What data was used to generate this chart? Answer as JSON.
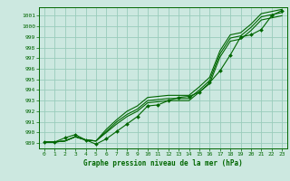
{
  "title": "Graphe pression niveau de la mer (hPa)",
  "bg_color": "#cce8e0",
  "grid_color": "#99ccbb",
  "line_color": "#006600",
  "ylim": [
    988.5,
    1001.8
  ],
  "yticks": [
    989,
    990,
    991,
    992,
    993,
    994,
    995,
    996,
    997,
    998,
    999,
    1000,
    1001
  ],
  "xlim": [
    -0.5,
    23.5
  ],
  "xticks": [
    0,
    1,
    2,
    3,
    4,
    5,
    6,
    7,
    8,
    9,
    10,
    11,
    12,
    13,
    14,
    15,
    16,
    17,
    18,
    19,
    20,
    21,
    22,
    23
  ],
  "plain_lines": [
    [
      989.1,
      989.1,
      989.2,
      989.6,
      989.3,
      989.2,
      990.3,
      991.2,
      992.0,
      992.5,
      993.3,
      993.4,
      993.5,
      993.5,
      993.5,
      994.3,
      995.2,
      997.7,
      999.2,
      999.4,
      1000.2,
      1001.2,
      1001.4,
      1001.6
    ],
    [
      989.1,
      989.1,
      989.2,
      989.6,
      989.3,
      989.2,
      990.1,
      991.0,
      991.7,
      992.2,
      993.0,
      993.1,
      993.2,
      993.2,
      993.2,
      994.0,
      994.9,
      997.4,
      998.9,
      999.1,
      999.9,
      1000.9,
      1001.1,
      1001.3
    ],
    [
      989.1,
      989.1,
      989.2,
      989.6,
      989.3,
      989.2,
      990.0,
      990.8,
      991.5,
      992.0,
      992.8,
      992.9,
      993.0,
      993.0,
      993.0,
      993.8,
      994.6,
      997.1,
      998.6,
      998.8,
      999.6,
      1000.6,
      1000.8,
      1001.0
    ]
  ],
  "marker_line": [
    989.1,
    989.1,
    989.5,
    989.8,
    989.3,
    988.9,
    989.4,
    990.1,
    990.8,
    991.5,
    992.5,
    992.6,
    993.0,
    993.3,
    993.4,
    993.8,
    994.7,
    995.8,
    997.3,
    999.0,
    999.2,
    999.7,
    1001.0,
    1001.5
  ]
}
